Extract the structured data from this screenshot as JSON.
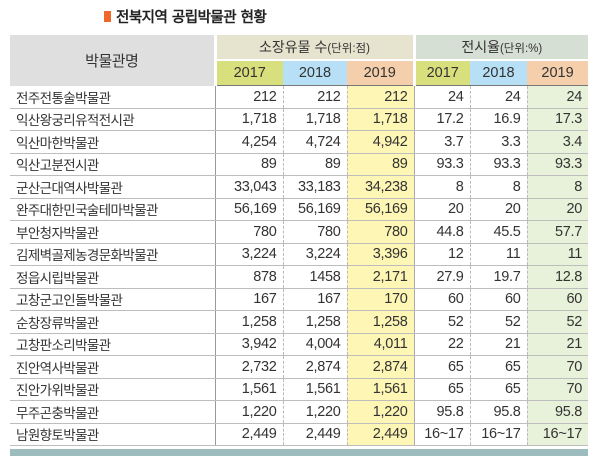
{
  "title": "전북지역 공립박물관 현황",
  "header": {
    "name_col": "박물관명",
    "group1": {
      "label": "소장유물 수",
      "unit": "(단위:점)"
    },
    "group2": {
      "label": "전시율",
      "unit": "(단위:%)"
    },
    "years": [
      "2017",
      "2018",
      "2019",
      "2017",
      "2018",
      "2019"
    ]
  },
  "colors": {
    "title_marker": "#ef6a2a",
    "year_2017": "#d8e07e",
    "year_2018": "#b7dff5",
    "year_2019": "#f5cfac",
    "highlight_holdings_2019": "#fdf6b5",
    "highlight_exhibit_2019": "#e8f1d9",
    "bottom_bar": "#9dbcbd"
  },
  "rows": [
    {
      "name": "전주전통술박물관",
      "h2017": "212",
      "h2018": "212",
      "h2019": "212",
      "e2017": "24",
      "e2018": "24",
      "e2019": "24"
    },
    {
      "name": "익산왕궁리유적전시관",
      "h2017": "1,718",
      "h2018": "1,718",
      "h2019": "1,718",
      "e2017": "17.2",
      "e2018": "16.9",
      "e2019": "17.3"
    },
    {
      "name": "익산마한박물관",
      "h2017": "4,254",
      "h2018": "4,724",
      "h2019": "4,942",
      "e2017": "3.7",
      "e2018": "3.3",
      "e2019": "3.4"
    },
    {
      "name": "익산고분전시관",
      "h2017": "89",
      "h2018": "89",
      "h2019": "89",
      "e2017": "93.3",
      "e2018": "93.3",
      "e2019": "93.3"
    },
    {
      "name": "군산근대역사박물관",
      "h2017": "33,043",
      "h2018": "33,183",
      "h2019": "34,238",
      "e2017": "8",
      "e2018": "8",
      "e2019": "8"
    },
    {
      "name": "완주대한민국술테마박물관",
      "h2017": "56,169",
      "h2018": "56,169",
      "h2019": "56,169",
      "e2017": "20",
      "e2018": "20",
      "e2019": "20"
    },
    {
      "name": "부안청자박물관",
      "h2017": "780",
      "h2018": "780",
      "h2019": "780",
      "e2017": "44.8",
      "e2018": "45.5",
      "e2019": "57.7"
    },
    {
      "name": "김제벽골제농경문화박물관",
      "h2017": "3,224",
      "h2018": "3,224",
      "h2019": "3,396",
      "e2017": "12",
      "e2018": "11",
      "e2019": "11"
    },
    {
      "name": "정읍시립박물관",
      "h2017": "878",
      "h2018": "1458",
      "h2019": "2,171",
      "e2017": "27.9",
      "e2018": "19.7",
      "e2019": "12.8"
    },
    {
      "name": "고창군고인돌박물관",
      "h2017": "167",
      "h2018": "167",
      "h2019": "170",
      "e2017": "60",
      "e2018": "60",
      "e2019": "60"
    },
    {
      "name": "순창장류박물관",
      "h2017": "1,258",
      "h2018": "1,258",
      "h2019": "1,258",
      "e2017": "52",
      "e2018": "52",
      "e2019": "52"
    },
    {
      "name": "고창판소리박물관",
      "h2017": "3,942",
      "h2018": "4,004",
      "h2019": "4,011",
      "e2017": "22",
      "e2018": "21",
      "e2019": "21"
    },
    {
      "name": "진안역사박물관",
      "h2017": "2,732",
      "h2018": "2,874",
      "h2019": "2,874",
      "e2017": "65",
      "e2018": "65",
      "e2019": "70"
    },
    {
      "name": "진안가위박물관",
      "h2017": "1,561",
      "h2018": "1,561",
      "h2019": "1,561",
      "e2017": "65",
      "e2018": "65",
      "e2019": "70"
    },
    {
      "name": "무주곤충박물관",
      "h2017": "1,220",
      "h2018": "1,220",
      "h2019": "1,220",
      "e2017": "95.8",
      "e2018": "95.8",
      "e2019": "95.8"
    },
    {
      "name": "남원향토박물관",
      "h2017": "2,449",
      "h2018": "2,449",
      "h2019": "2,449",
      "e2017": "16~17",
      "e2018": "16~17",
      "e2019": "16~17"
    }
  ]
}
